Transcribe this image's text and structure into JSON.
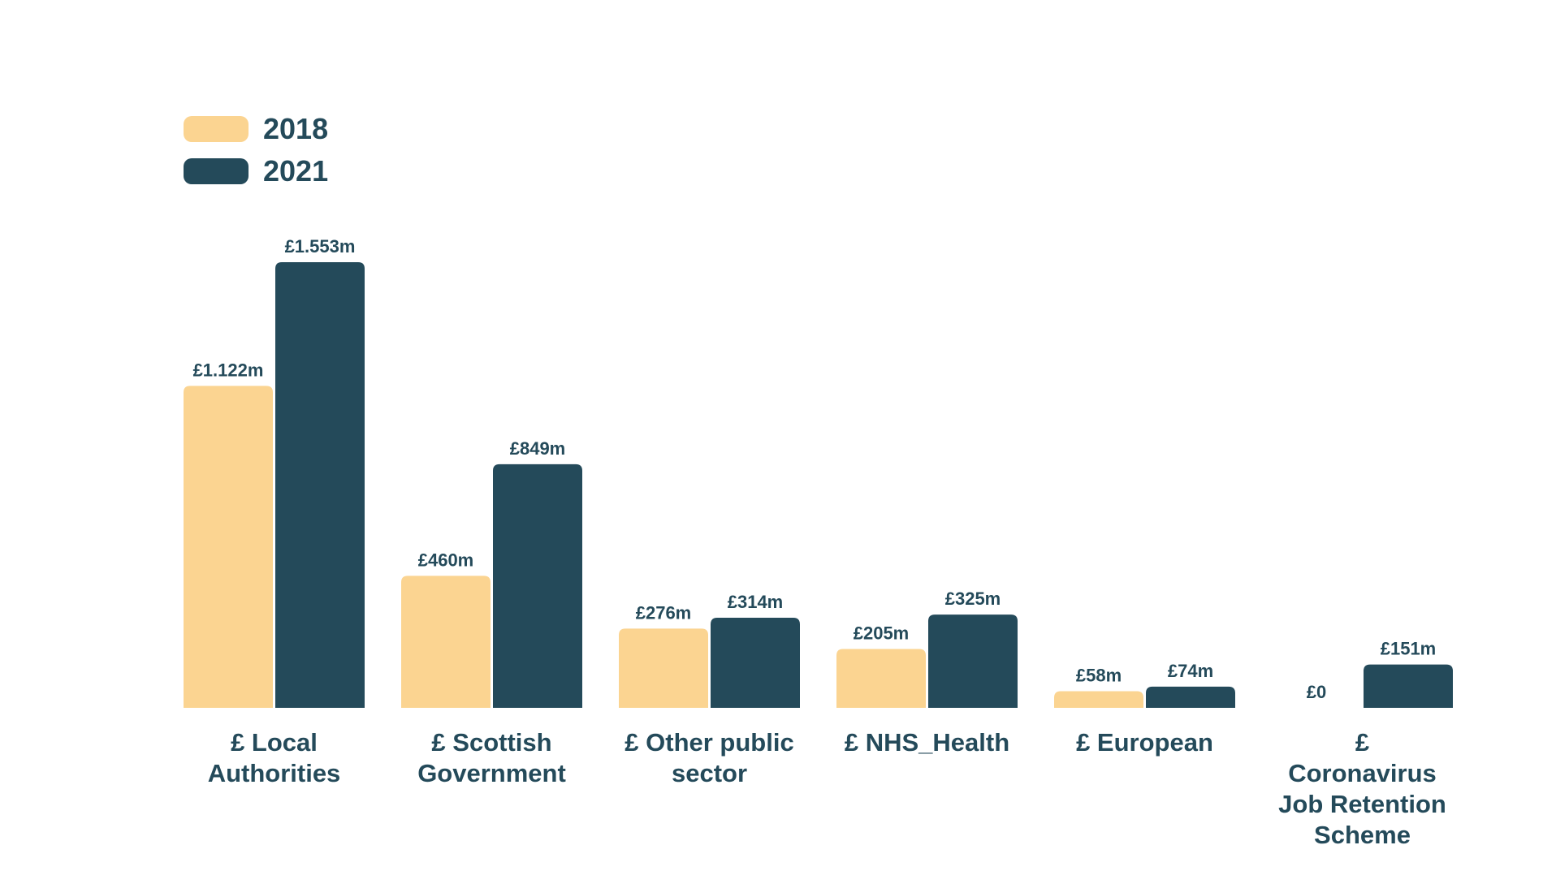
{
  "chart_data": {
    "type": "bar",
    "categories": [
      "£ Local\nAuthorities",
      "£ Scottish\nGovernment",
      "£ Other public\nsector",
      "£ NHS_Health",
      "£ European",
      "£\nCoronavirus\nJob Retention\nScheme"
    ],
    "series": [
      {
        "name": "2018",
        "color": "#fbd491",
        "values": [
          1122,
          460,
          276,
          205,
          58,
          0
        ],
        "value_labels": [
          "£1.122m",
          "£460m",
          "£276m",
          "£205m",
          "£58m",
          "£0"
        ]
      },
      {
        "name": "2021",
        "color": "#244a5a",
        "values": [
          1553,
          849,
          314,
          325,
          74,
          151
        ],
        "value_labels": [
          "£1.553m",
          "£849m",
          "£314m",
          "£325m",
          "£74m",
          "£151m"
        ]
      }
    ],
    "legend": "top-left"
  }
}
